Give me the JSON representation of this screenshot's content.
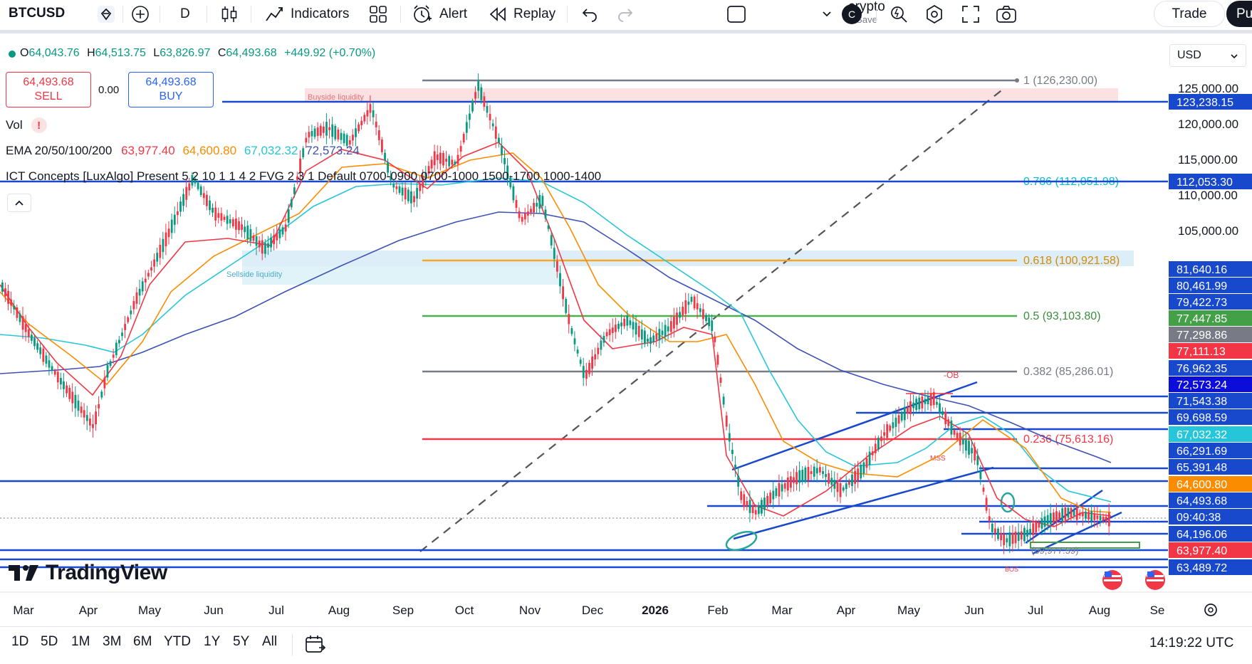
{
  "toolbar": {
    "symbol": "BTCUSD",
    "interval": "D",
    "indicators_label": "Indicators",
    "alert_label": "Alert",
    "replay_label": "Replay",
    "layout_name": "crypto",
    "layout_save": "Save",
    "account_badge": "C",
    "trade_label": "Trade",
    "publish_label": "Pu"
  },
  "legend": {
    "o_label": "O",
    "o_value": "64,043.76",
    "h_label": "H",
    "h_value": "64,513.75",
    "l_label": "L",
    "l_value": "63,826.97",
    "c_label": "C",
    "c_value": "64,493.68",
    "change": "+449.92 (+0.70%)",
    "sell_price": "64,493.68",
    "sell_label": "SELL",
    "spread": "0.00",
    "buy_price": "64,493.68",
    "buy_label": "BUY",
    "vol_label": "Vol",
    "vol_warning": "!",
    "ema_label": "EMA 20/50/100/200",
    "ema_values": [
      "63,977.40",
      "64,600.80",
      "67,032.32",
      "72,573.24"
    ],
    "ict_label": "ICT Concepts [LuxAlgo] Present 5 2 10 1 1 4 2 FVG 2 3 1 Default 0700-0900 0700-1000 1500-1700 1000-1400"
  },
  "currency": "USD",
  "brand": "TradingView",
  "chart_data": {
    "type": "candlestick",
    "symbol": "BTCUSD",
    "interval": "D",
    "y_axis_ticks": [
      "125,000.00",
      "120,000.00",
      "115,000.00",
      "110,000.00",
      "105,000.00"
    ],
    "x_axis_labels": [
      "Mar",
      "Apr",
      "May",
      "Jun",
      "Jul",
      "Aug",
      "Sep",
      "Oct",
      "Nov",
      "Dec",
      "2026",
      "Feb",
      "Mar",
      "Apr",
      "May",
      "Jun",
      "Jul",
      "Aug",
      "Se"
    ],
    "fib_levels": [
      {
        "label": "1 (126,230.00)",
        "color": "#787b86"
      },
      {
        "label": "0.786 (112,051.98)",
        "color": "#00bcd4"
      },
      {
        "label": "0.618 (100,921.58)",
        "color": "#f5a623"
      },
      {
        "label": "0.5 (93,103.80)",
        "color": "#4caf50"
      },
      {
        "label": "0.382 (85,286.01)",
        "color": "#787b86"
      },
      {
        "label": "0.236 (75,613.16)",
        "color": "#f23645"
      }
    ],
    "annotations": [
      "Buyside liquidity",
      "Sellside liquidity",
      "-OB",
      "MSS",
      "(59,977.59)",
      "BOS"
    ],
    "price_labels": [
      {
        "text": "123,238.15",
        "bg": "#1848cc",
        "fg": "#ffffff"
      },
      {
        "text": "112,053.30",
        "bg": "#1848cc",
        "fg": "#ffffff"
      },
      {
        "text": "81,640.16",
        "bg": "#1848cc",
        "fg": "#ffffff"
      },
      {
        "text": "80,461.99",
        "bg": "#1848cc",
        "fg": "#ffffff"
      },
      {
        "text": "79,422.73",
        "bg": "#1848cc",
        "fg": "#ffffff"
      },
      {
        "text": "77,447.85",
        "bg": "#43a047",
        "fg": "#ffffff"
      },
      {
        "text": "77,298.86",
        "bg": "#787b86",
        "fg": "#ffffff"
      },
      {
        "text": "77,111.13",
        "bg": "#f23645",
        "fg": "#ffffff"
      },
      {
        "text": "76,962.35",
        "bg": "#1848cc",
        "fg": "#ffffff"
      },
      {
        "text": "72,573.24",
        "bg": "#0d0dd9",
        "fg": "#ffffff"
      },
      {
        "text": "71,543.38",
        "bg": "#1848cc",
        "fg": "#ffffff"
      },
      {
        "text": "69,698.59",
        "bg": "#1848cc",
        "fg": "#ffffff"
      },
      {
        "text": "67,032.32",
        "bg": "#26c6da",
        "fg": "#ffffff"
      },
      {
        "text": "66,291.69",
        "bg": "#1848cc",
        "fg": "#ffffff"
      },
      {
        "text": "65,391.48",
        "bg": "#1848cc",
        "fg": "#ffffff"
      },
      {
        "text": "64,600.80",
        "bg": "#fb8c00",
        "fg": "#ffffff"
      },
      {
        "text": "64,493.68",
        "bg": "#1848cc",
        "fg": "#ffffff"
      },
      {
        "text": "09:40:38",
        "bg": "#1848cc",
        "fg": "#ffffff"
      },
      {
        "text": "64,196.06",
        "bg": "#1848cc",
        "fg": "#ffffff"
      },
      {
        "text": "63,977.40",
        "bg": "#f23645",
        "fg": "#ffffff"
      },
      {
        "text": "63,489.72",
        "bg": "#1848cc",
        "fg": "#ffffff"
      }
    ],
    "ema_series": [
      {
        "name": "EMA 20",
        "color": "#f23645",
        "last": 63977.4
      },
      {
        "name": "EMA 50",
        "color": "#fb8c00",
        "last": 64600.8
      },
      {
        "name": "EMA 100",
        "color": "#26c6da",
        "last": 67032.32
      },
      {
        "name": "EMA 200",
        "color": "#3f51b5",
        "last": 72573.24
      }
    ],
    "grid": false
  },
  "bottom": {
    "ranges": [
      "1D",
      "5D",
      "1M",
      "3M",
      "6M",
      "YTD",
      "1Y",
      "5Y",
      "All"
    ],
    "clock": "14:19:22 UTC"
  },
  "colors": {
    "up": "#089981",
    "down": "#f23645",
    "accent": "#2962ff",
    "line_blue": "#1848cc"
  }
}
